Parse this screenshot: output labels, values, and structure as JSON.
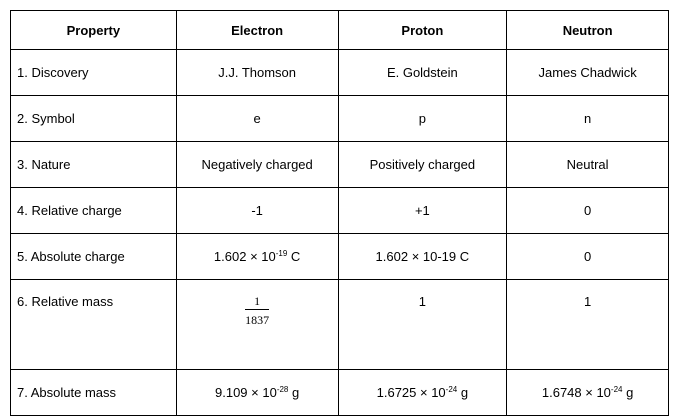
{
  "headers": [
    "Property",
    "Electron",
    "Proton",
    "Neutron"
  ],
  "rows": [
    {
      "property": "1. Discovery",
      "electron": "J.J. Thomson",
      "proton": "E. Goldstein",
      "neutron": "James Chadwick"
    },
    {
      "property": "2. Symbol",
      "electron": "e",
      "proton": "p",
      "neutron": "n"
    },
    {
      "property": "3. Nature",
      "electron": "Negatively charged",
      "proton": "Positively charged",
      "neutron": "Neutral"
    },
    {
      "property": "4. Relative charge",
      "electron": "-1",
      "proton": "+1",
      "neutron": "0"
    },
    {
      "property": "5. Absolute charge",
      "electron": {
        "base": "1.602 × 10",
        "exp": "-19",
        "unit": " C"
      },
      "proton": "1.602 × 10-19 C",
      "neutron": "0"
    },
    {
      "property": "6. Relative mass",
      "electron": {
        "num": "1",
        "den": "1837"
      },
      "proton": "1",
      "neutron": "1"
    },
    {
      "property": "7. Absolute mass",
      "electron": {
        "base": "9.109 × 10",
        "exp": "-28",
        "unit": " g"
      },
      "proton": {
        "base": "1.6725 × 10",
        "exp": "-24",
        "unit": " g"
      },
      "neutron": {
        "base": "1.6748 × 10",
        "exp": "-24",
        "unit": " g"
      }
    }
  ]
}
